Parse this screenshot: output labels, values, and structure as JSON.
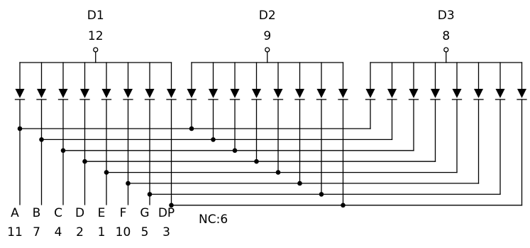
{
  "digits": [
    {
      "name": "D1",
      "pin": "12"
    },
    {
      "name": "D2",
      "pin": "9"
    },
    {
      "name": "D3",
      "pin": "8"
    }
  ],
  "segments": [
    {
      "name": "A",
      "pin": "11"
    },
    {
      "name": "B",
      "pin": "7"
    },
    {
      "name": "C",
      "pin": "4"
    },
    {
      "name": "D",
      "pin": "2"
    },
    {
      "name": "E",
      "pin": "1"
    },
    {
      "name": "F",
      "pin": "10"
    },
    {
      "name": "G",
      "pin": "5"
    },
    {
      "name": "DP",
      "pin": "3"
    }
  ],
  "nc_label": "NC:6",
  "colors": {
    "line": "#000000",
    "background": "#ffffff"
  }
}
